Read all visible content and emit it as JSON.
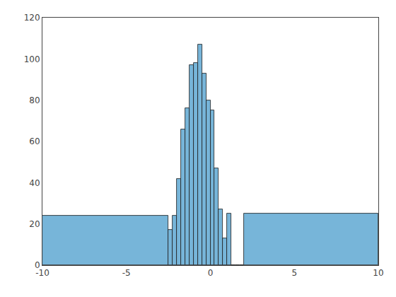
{
  "chart_data": {
    "type": "histogram",
    "bins": [
      -10,
      -2.5,
      -2.25,
      -2.0,
      -1.75,
      -1.5,
      -1.25,
      -1.0,
      -0.75,
      -0.5,
      -0.25,
      0.0,
      0.25,
      0.5,
      0.75,
      1.0,
      1.25,
      1.5,
      1.75,
      2.0,
      10
    ],
    "values": [
      24,
      17,
      24,
      42,
      66,
      76,
      97,
      98,
      107,
      93,
      80,
      75,
      47,
      27,
      13,
      25,
      0,
      0,
      0,
      25
    ],
    "color": "#77B5D9",
    "xlim": [
      -10,
      10
    ],
    "xticks": [
      -10,
      -5,
      0,
      5,
      10
    ],
    "ylim": [
      0,
      120
    ],
    "yticks": [
      0,
      20,
      40,
      60,
      80,
      100,
      120
    ],
    "grid": false
  }
}
